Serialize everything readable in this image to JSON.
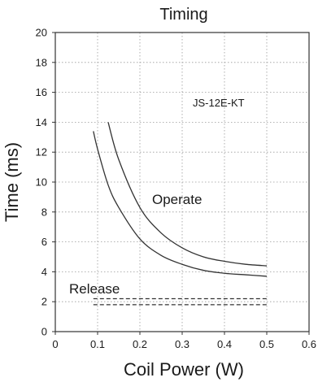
{
  "chart_data": {
    "type": "line",
    "title": "Timing",
    "xlabel": "Coil Power (W)",
    "ylabel": "Time (ms)",
    "xlim": [
      0,
      0.6
    ],
    "ylim": [
      0,
      20
    ],
    "x_ticks": [
      "0",
      "0.1",
      "0.2",
      "0.3",
      "0.4",
      "0.5",
      "0.6"
    ],
    "y_ticks": [
      "0",
      "2",
      "4",
      "6",
      "8",
      "10",
      "12",
      "14",
      "16",
      "18",
      "20"
    ],
    "grid": true,
    "annotations": {
      "model": "JS-12E-KT",
      "operate": "Operate",
      "release": "Release"
    },
    "series": [
      {
        "style": "solid",
        "x": [
          0.125,
          0.15,
          0.2,
          0.25,
          0.3,
          0.35,
          0.4,
          0.45,
          0.5
        ],
        "y": [
          14.0,
          11.5,
          8.3,
          6.6,
          5.6,
          5.0,
          4.7,
          4.5,
          4.4
        ]
      },
      {
        "style": "solid",
        "x": [
          0.09,
          0.1,
          0.125,
          0.15,
          0.2,
          0.25,
          0.3,
          0.35,
          0.4,
          0.45,
          0.5
        ],
        "y": [
          13.4,
          12.2,
          9.8,
          8.3,
          6.2,
          5.1,
          4.5,
          4.1,
          3.9,
          3.8,
          3.7
        ]
      },
      {
        "style": "dashed",
        "x": [
          0.09,
          0.5
        ],
        "y": [
          2.2,
          2.2
        ]
      },
      {
        "style": "dashed",
        "x": [
          0.09,
          0.5
        ],
        "y": [
          1.8,
          1.8
        ]
      }
    ]
  }
}
